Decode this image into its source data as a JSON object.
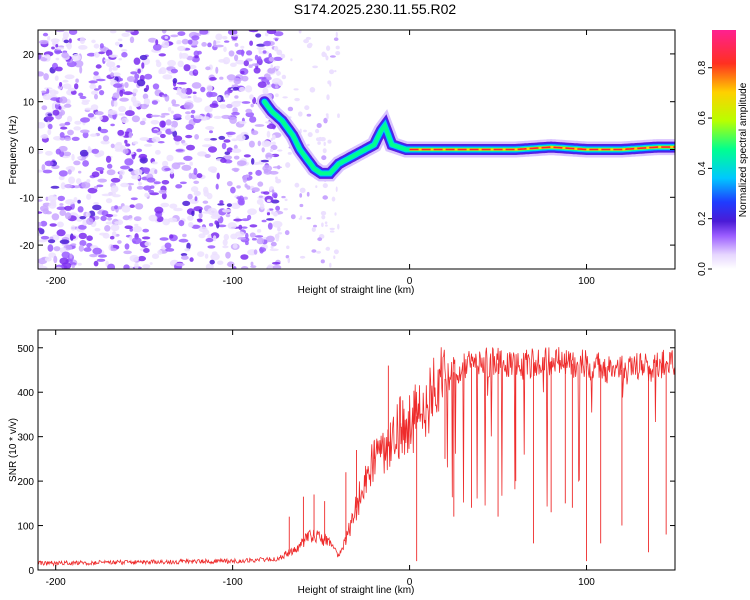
{
  "title": "S174.2025.230.11.55.R02",
  "colors": {
    "snr_line": "#ee2b2b",
    "ridge": "#ff2030",
    "colormap": [
      "#ffffff",
      "#ece0ff",
      "#c9a6ff",
      "#9a5cff",
      "#7b2cf0",
      "#4a1bd6",
      "#1f3cff",
      "#00c8ff",
      "#00ff90",
      "#b8ff00",
      "#ffd000",
      "#ff2030",
      "#ff2090"
    ]
  },
  "chart_data": [
    {
      "type": "heatmap",
      "name": "spectrogram",
      "xlabel": "Height of straight line (km)",
      "ylabel": "Frequency (Hz)",
      "xlim": [
        -210,
        150
      ],
      "ylim": [
        -25,
        25
      ],
      "xticks": [
        -200,
        -100,
        0,
        100
      ],
      "xtick_labels": [
        "-200",
        "-100",
        "0",
        "100"
      ],
      "yticks": [
        -20,
        -10,
        0,
        10,
        20
      ],
      "ytick_labels": [
        "-20",
        "-10",
        "0",
        "10",
        "20"
      ],
      "ridge": {
        "x": [
          -82,
          -78,
          -72,
          -66,
          -62,
          -58,
          -54,
          -50,
          -45,
          -40,
          -35,
          -30,
          -25,
          -20,
          -16,
          -14,
          -12,
          -10,
          -6,
          -2,
          0,
          10,
          30,
          60,
          80,
          100,
          120,
          140,
          150
        ],
        "y": [
          10,
          8,
          6,
          3,
          0,
          -2,
          -4,
          -5,
          -5,
          -3,
          -2,
          -1,
          0,
          1,
          4,
          5,
          3,
          1,
          0.5,
          0,
          0,
          0,
          0,
          0,
          0.5,
          0,
          0,
          0.5,
          0.5
        ]
      },
      "noise_region_x": [
        -210,
        -80
      ],
      "colorbar": {
        "label": "Normalized spectral amplitude",
        "range": [
          0,
          0.95
        ],
        "ticks": [
          0.0,
          0.2,
          0.4,
          0.6,
          0.8
        ],
        "tick_labels": [
          "0.0",
          "0.2",
          "0.4",
          "0.6",
          "0.8"
        ]
      }
    },
    {
      "type": "line",
      "name": "snr",
      "xlabel": "Height of straight line (km)",
      "ylabel": "SNR (10 * v/v)",
      "xlim": [
        -210,
        150
      ],
      "ylim": [
        0,
        540
      ],
      "xticks": [
        -200,
        -100,
        0,
        100
      ],
      "xtick_labels": [
        "-200",
        "-100",
        "0",
        "100"
      ],
      "yticks": [
        0,
        100,
        200,
        300,
        400,
        500
      ],
      "ytick_labels": [
        "0",
        "100",
        "200",
        "300",
        "400",
        "500"
      ],
      "series": [
        {
          "name": "SNR",
          "envelope_x": [
            -210,
            -100,
            -75,
            -65,
            -55,
            -45,
            -40,
            -35,
            -30,
            -25,
            -20,
            -15,
            -10,
            -5,
            0,
            5,
            10,
            20,
            30,
            40,
            60,
            80,
            100,
            120,
            140,
            150
          ],
          "envelope_y": [
            15,
            20,
            25,
            45,
            80,
            60,
            30,
            80,
            140,
            210,
            250,
            270,
            300,
            320,
            330,
            350,
            380,
            430,
            460,
            470,
            460,
            470,
            460,
            450,
            460,
            470
          ],
          "spikes_x": [
            -68,
            -60,
            -54,
            -48,
            -36,
            -30,
            -20,
            -12,
            -5,
            4,
            20,
            25,
            35,
            50,
            60,
            70,
            80,
            88,
            92,
            100,
            108,
            120,
            135,
            145
          ],
          "spikes_y": [
            120,
            165,
            170,
            155,
            220,
            270,
            290,
            460,
            330,
            20,
            250,
            120,
            140,
            120,
            200,
            60,
            130,
            150,
            140,
            20,
            60,
            100,
            40,
            80
          ]
        }
      ]
    }
  ]
}
